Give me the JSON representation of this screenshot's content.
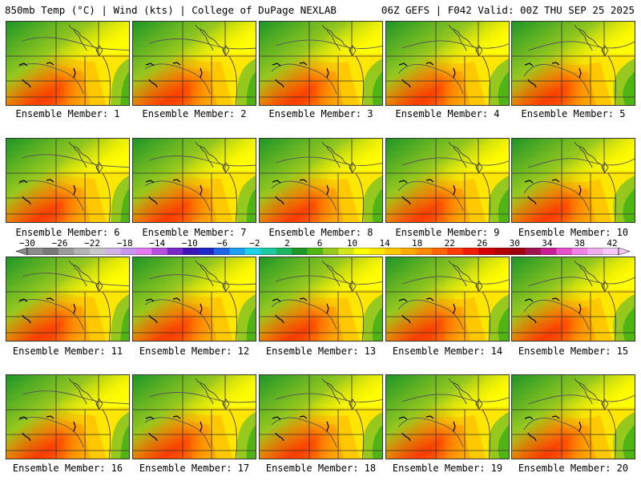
{
  "header": {
    "left": "850mb Temp (°C) | Wind (kts) | College of DuPage NEXLAB",
    "right": "06Z GEFS | F042 Valid: 00Z THU SEP 25 2025"
  },
  "panels": [
    {
      "label": "Ensemble Member: 1"
    },
    {
      "label": "Ensemble Member: 2"
    },
    {
      "label": "Ensemble Member: 3"
    },
    {
      "label": "Ensemble Member: 4"
    },
    {
      "label": "Ensemble Member: 5"
    },
    {
      "label": "Ensemble Member: 6"
    },
    {
      "label": "Ensemble Member: 7"
    },
    {
      "label": "Ensemble Member: 8"
    },
    {
      "label": "Ensemble Member: 9"
    },
    {
      "label": "Ensemble Member: 10"
    },
    {
      "label": "Ensemble Member: 11"
    },
    {
      "label": "Ensemble Member: 12"
    },
    {
      "label": "Ensemble Member: 13"
    },
    {
      "label": "Ensemble Member: 14"
    },
    {
      "label": "Ensemble Member: 15"
    },
    {
      "label": "Ensemble Member: 16"
    },
    {
      "label": "Ensemble Member: 17"
    },
    {
      "label": "Ensemble Member: 18"
    },
    {
      "label": "Ensemble Member: 19"
    },
    {
      "label": "Ensemble Member: 20"
    }
  ],
  "colorbar": {
    "labels": [
      "−30",
      "−26",
      "−22",
      "−18",
      "−14",
      "−10",
      "−6",
      "−2",
      "2",
      "6",
      "10",
      "14",
      "18",
      "22",
      "26",
      "30",
      "34",
      "38",
      "42"
    ],
    "colors": [
      "#8c8c8c",
      "#787878",
      "#9a9a9a",
      "#b4b4b4",
      "#c8c8c8",
      "#d2b4e6",
      "#c896f0",
      "#e678f0",
      "#b450dc",
      "#7828c8",
      "#3c14b4",
      "#1e28c8",
      "#1e64e6",
      "#1ea0f0",
      "#1ed2e6",
      "#1ec8a0",
      "#1eb464",
      "#1e9628",
      "#50b414",
      "#96c81e",
      "#d2e61e",
      "#ffff00",
      "#ffe600",
      "#ffc800",
      "#ffaa00",
      "#ff8c00",
      "#ff6400",
      "#ff3c00",
      "#f01e00",
      "#d20000",
      "#b40000",
      "#a0000a",
      "#a01450",
      "#c81e96",
      "#e650c8",
      "#f082e6",
      "#f0aaf0",
      "#f5c8f5"
    ]
  }
}
